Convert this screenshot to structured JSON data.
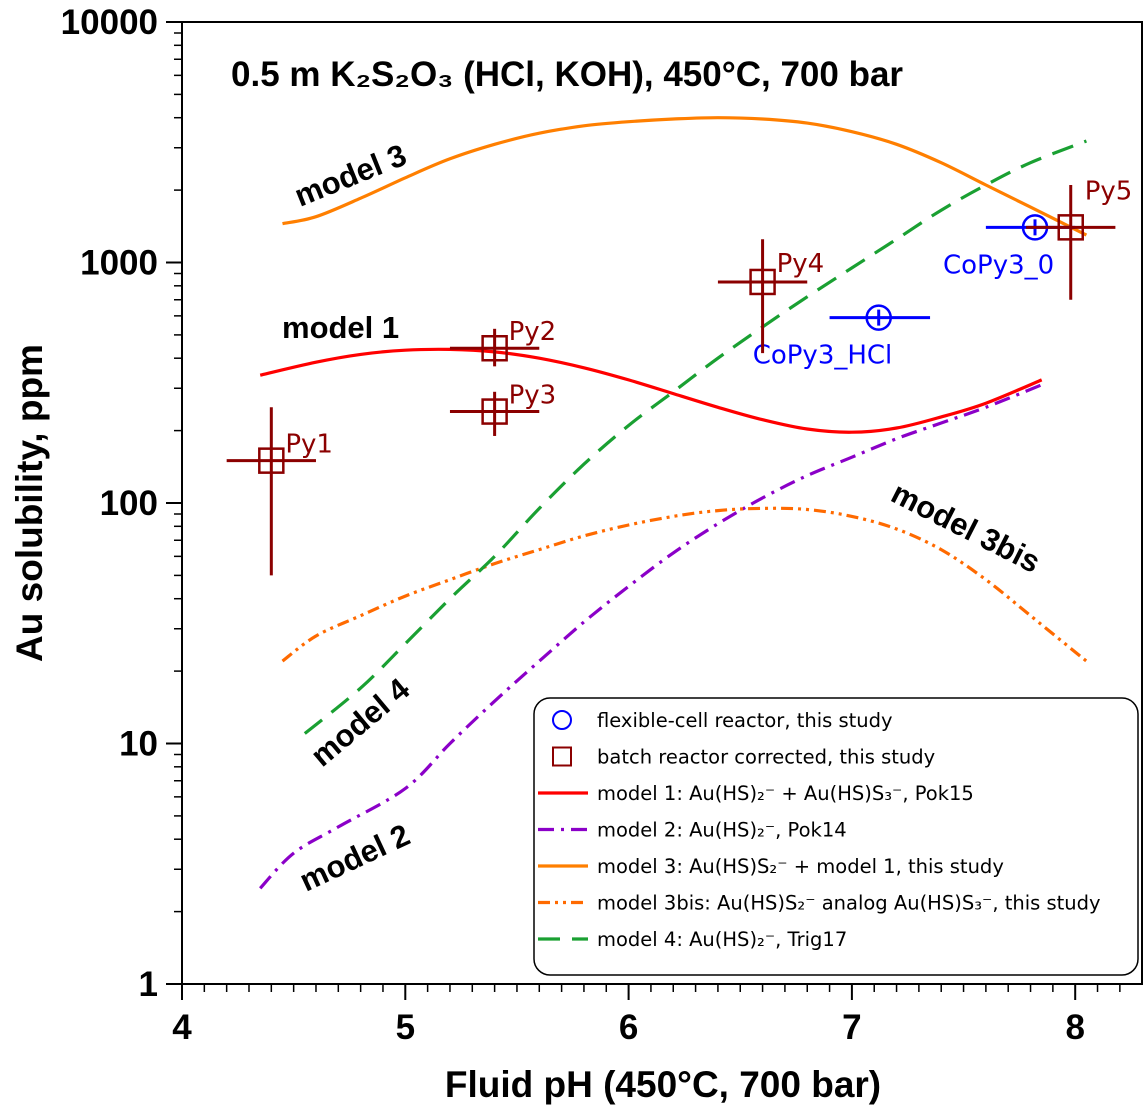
{
  "chart_data": {
    "type": "scatter",
    "title": "0.5 m K₂S₂O₃ (HCl, KOH), 450°C, 700 bar",
    "xlabel": "Fluid pH (450°C, 700 bar)",
    "ylabel": "Au solubility, ppm",
    "xlim": [
      4,
      8.3
    ],
    "ylim": [
      1,
      10000
    ],
    "yscale": "log",
    "x_ticks": [
      "4",
      "5",
      "6",
      "7",
      "8"
    ],
    "y_ticks": [
      "1",
      "10",
      "100",
      "1000",
      "10000"
    ],
    "grid": false,
    "legend_position": "bottom-right",
    "colors": {
      "flexible": "#0000ff",
      "batch": "#8b0000",
      "model1": "#ff0000",
      "model2": "#8b00c8",
      "model3": "#ff7f00",
      "model3bis": "#ff6a00",
      "model4": "#1aa032"
    },
    "series": [
      {
        "name": "flexible-cell reactor, this study",
        "kind": "points",
        "marker": "circle",
        "points": [
          {
            "label": "CoPy3_0",
            "x": 7.82,
            "y": 1400,
            "xerr": [
              7.6,
              8.0
            ],
            "yerr": [
              1400,
              1400
            ]
          },
          {
            "label": "CoPy3_HCl",
            "x": 7.12,
            "y": 590,
            "xerr": [
              6.9,
              7.35
            ],
            "yerr": [
              590,
              590
            ]
          }
        ]
      },
      {
        "name": "batch reactor corrected, this study",
        "kind": "points",
        "marker": "square",
        "points": [
          {
            "label": "Py1",
            "x": 4.4,
            "y": 150,
            "xerr": [
              4.2,
              4.6
            ],
            "yerr": [
              50,
              250
            ]
          },
          {
            "label": "Py2",
            "x": 5.4,
            "y": 440,
            "xerr": [
              5.2,
              5.6
            ],
            "yerr": [
              370,
              530
            ]
          },
          {
            "label": "Py3",
            "x": 5.4,
            "y": 240,
            "xerr": [
              5.2,
              5.6
            ],
            "yerr": [
              190,
              290
            ]
          },
          {
            "label": "Py4",
            "x": 6.6,
            "y": 830,
            "xerr": [
              6.4,
              6.8
            ],
            "yerr": [
              420,
              1250
            ]
          },
          {
            "label": "Py5",
            "x": 7.98,
            "y": 1400,
            "xerr": [
              7.78,
              8.18
            ],
            "yerr": [
              700,
              2100
            ]
          }
        ]
      },
      {
        "name": "model 1: Au(HS)₂⁻ + Au(HS)S₃⁻, Pok15",
        "curve_label": "model 1",
        "kind": "line",
        "style": "solid",
        "x": [
          4.35,
          4.6,
          4.8,
          5.0,
          5.2,
          5.4,
          5.6,
          5.8,
          6.0,
          6.2,
          6.4,
          6.6,
          6.8,
          7.0,
          7.2,
          7.4,
          7.6,
          7.85
        ],
        "y": [
          340,
          385,
          415,
          432,
          435,
          425,
          400,
          365,
          325,
          285,
          250,
          222,
          203,
          197,
          205,
          228,
          260,
          325
        ]
      },
      {
        "name": "model 2: Au(HS)₂⁻, Pok14",
        "curve_label": "model 2",
        "kind": "line",
        "style": "dashdot",
        "x": [
          4.35,
          4.5,
          4.7,
          5.0,
          5.2,
          5.4,
          5.6,
          5.8,
          6.0,
          6.2,
          6.4,
          6.6,
          6.8,
          7.0,
          7.2,
          7.4,
          7.6,
          7.85
        ],
        "y": [
          2.5,
          3.5,
          4.5,
          6.5,
          10,
          15,
          22,
          32,
          45,
          62,
          82,
          105,
          130,
          155,
          185,
          215,
          250,
          310
        ]
      },
      {
        "name": "model 3: Au(HS)S₂⁻ + model 1, this study",
        "curve_label": "model 3",
        "kind": "line",
        "style": "solid",
        "x": [
          4.45,
          4.6,
          4.8,
          5.0,
          5.2,
          5.4,
          5.6,
          5.8,
          6.0,
          6.2,
          6.4,
          6.6,
          6.8,
          7.0,
          7.2,
          7.4,
          7.6,
          7.8,
          8.05
        ],
        "y": [
          1450,
          1550,
          1850,
          2250,
          2700,
          3100,
          3450,
          3700,
          3850,
          3950,
          4000,
          3950,
          3800,
          3500,
          3100,
          2600,
          2100,
          1700,
          1300
        ]
      },
      {
        "name": "model 3bis: Au(HS)S₂⁻ analog Au(HS)S₃⁻, this study",
        "curve_label": "model 3bis",
        "kind": "line",
        "style": "dashdotdot",
        "x": [
          4.45,
          4.6,
          4.8,
          5.0,
          5.2,
          5.4,
          5.6,
          5.8,
          6.0,
          6.2,
          6.4,
          6.6,
          6.8,
          7.0,
          7.2,
          7.4,
          7.6,
          7.8,
          8.05
        ],
        "y": [
          22,
          28,
          34,
          41,
          48,
          56,
          64,
          73,
          81,
          88,
          93,
          95,
          94,
          88,
          78,
          64,
          48,
          34,
          22
        ]
      },
      {
        "name": "model 4: Au(HS)₂⁻, Trig17",
        "curve_label": "model 4",
        "kind": "line",
        "style": "dashed",
        "x": [
          4.55,
          4.8,
          5.0,
          5.2,
          5.4,
          5.6,
          5.8,
          6.0,
          6.2,
          6.4,
          6.6,
          6.8,
          7.0,
          7.2,
          7.4,
          7.6,
          7.8,
          8.05
        ],
        "y": [
          11,
          17,
          26,
          40,
          60,
          95,
          145,
          210,
          290,
          400,
          540,
          720,
          950,
          1250,
          1650,
          2100,
          2600,
          3200
        ]
      }
    ]
  }
}
